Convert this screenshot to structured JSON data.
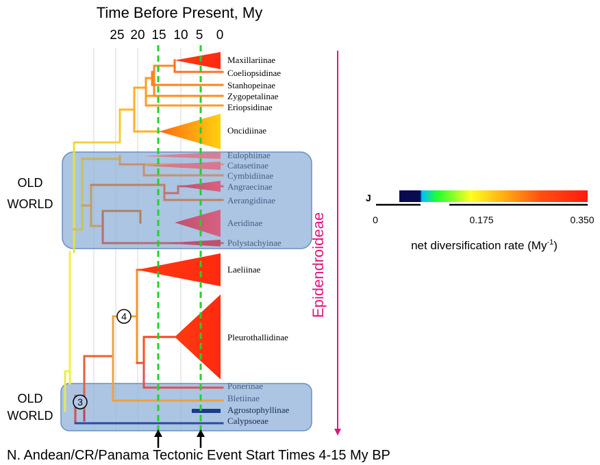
{
  "header": {
    "time_title": "Time Before Present, My",
    "time_ticks": [
      "25",
      "20",
      "15",
      "10",
      "5",
      "0"
    ]
  },
  "regions": [
    {
      "line1": "OLD",
      "line2": "WORLD"
    },
    {
      "line1": "OLD",
      "line2": "WORLD"
    }
  ],
  "clades": [
    "Maxillariinae",
    "Coeliopsidinae",
    "Stanhopeinae",
    "Zygopetalinae",
    "Eriopsidinae",
    "Oncidiinae",
    "Eulophiinae",
    "Catasetinae",
    "Cymbidiinae",
    "Angraecinae",
    "Aerangidinae",
    "Aeridinae",
    "Polystachyinae",
    "Laeliinae",
    "Pleurothallidinae",
    "Ponerinae",
    "Bletiinae",
    "Agrostophyllinae",
    "Calypsoeae"
  ],
  "nodes": [
    "4",
    "3"
  ],
  "group_label": "Epidendroideae",
  "legend": {
    "marker": "J",
    "ticks": [
      "0",
      "0.175",
      "0.350"
    ],
    "title": "net diversification rate (My",
    "title_sup": "-1",
    "title_end": ")"
  },
  "footer": {
    "event_text": "N. Andean/CR/Panama Tectonic Event Start Times 4-15 My BP"
  },
  "colors": {
    "old_world_box": "#8fb2d8",
    "event_line": "#22d22a",
    "clade_hot": "#ff2a10",
    "clade_warm": "#ffb010",
    "epidendroideae": "#e0147f",
    "arrow": "#000000"
  }
}
